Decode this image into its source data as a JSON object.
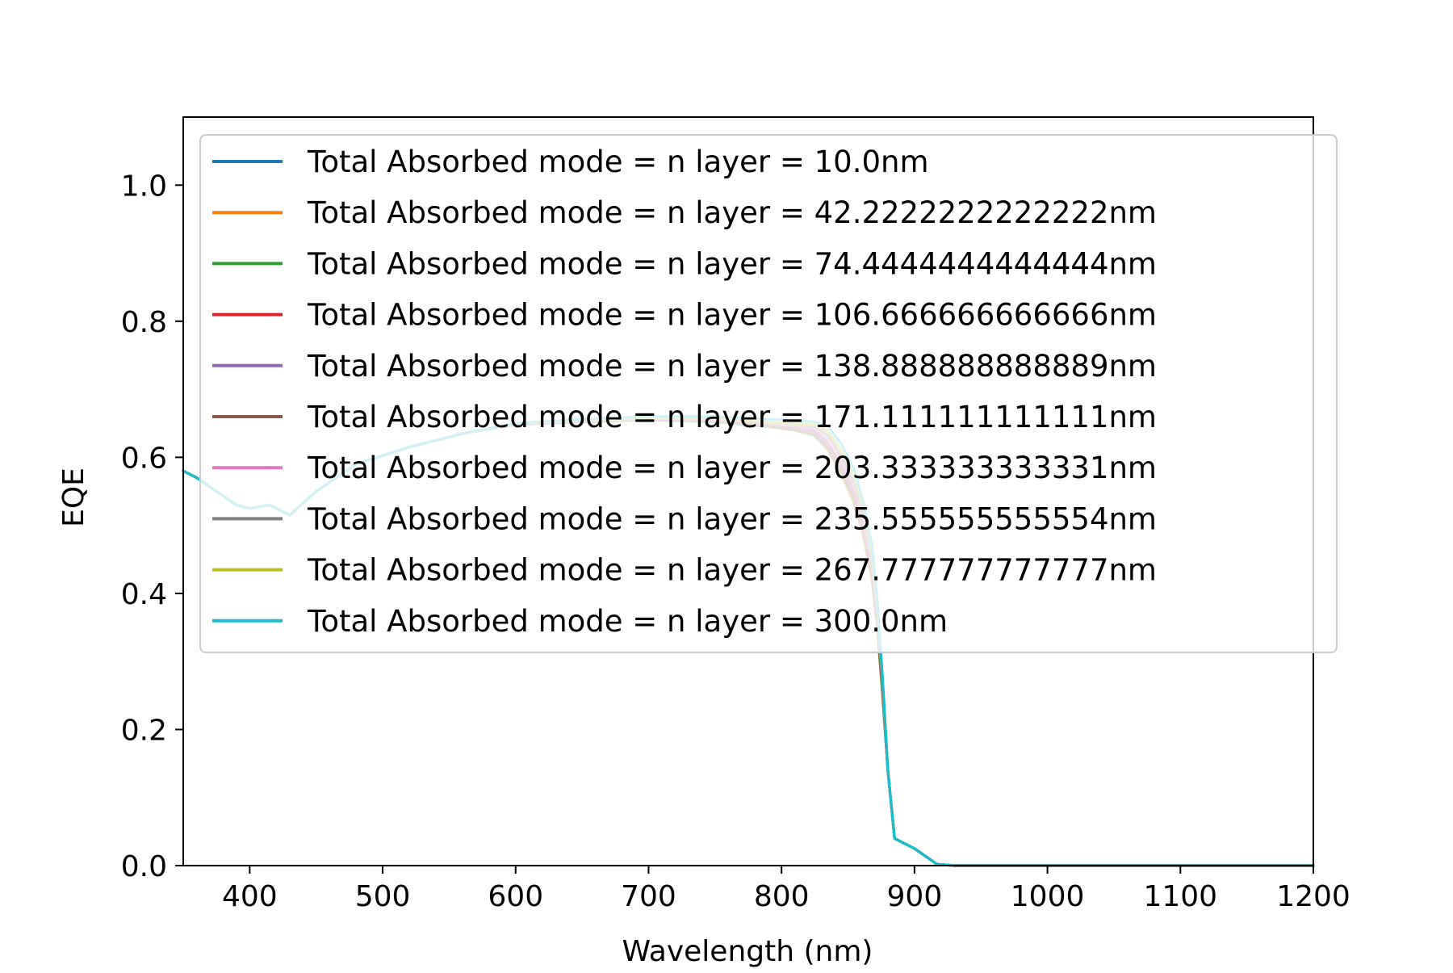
{
  "chart_data": {
    "type": "line",
    "title": "",
    "xlabel": "Wavelength (nm)",
    "ylabel": "EQE",
    "xlim": [
      350,
      1200
    ],
    "ylim": [
      0,
      1.1
    ],
    "xticks": [
      400,
      500,
      600,
      700,
      800,
      900,
      1000,
      1100,
      1200
    ],
    "yticks": [
      0.0,
      0.2,
      0.4,
      0.6,
      0.8,
      1.0
    ],
    "xtick_labels": [
      "400",
      "500",
      "600",
      "700",
      "800",
      "900",
      "1000",
      "1100",
      "1200"
    ],
    "ytick_labels": [
      "0.0",
      "0.2",
      "0.4",
      "0.6",
      "0.8",
      "1.0"
    ],
    "grid": false,
    "legend_position": "top-right",
    "x": [
      350,
      360,
      375,
      390,
      400,
      415,
      430,
      450,
      480,
      520,
      560,
      600,
      650,
      700,
      750,
      790,
      810,
      825,
      835,
      845,
      855,
      862,
      868,
      872,
      876,
      880,
      885,
      900,
      917,
      930,
      1000,
      1100,
      1200
    ],
    "series": [
      {
        "name": "Total Absorbed mode = n layer = 10.0nm",
        "color": "#1f77b4",
        "values": [
          0.58,
          0.57,
          0.55,
          0.53,
          0.525,
          0.53,
          0.515,
          0.55,
          0.59,
          0.615,
          0.635,
          0.648,
          0.652,
          0.655,
          0.652,
          0.645,
          0.64,
          0.632,
          0.61,
          0.575,
          0.53,
          0.48,
          0.42,
          0.35,
          0.25,
          0.14,
          0.04,
          0.025,
          0.002,
          0.0,
          0.0,
          0.0,
          0.0
        ]
      },
      {
        "name": "Total Absorbed mode = n layer = 42.2222222222222nm",
        "color": "#ff7f0e",
        "values": [
          0.58,
          0.57,
          0.55,
          0.53,
          0.525,
          0.53,
          0.515,
          0.55,
          0.59,
          0.615,
          0.635,
          0.648,
          0.652,
          0.655,
          0.652,
          0.645,
          0.64,
          0.632,
          0.61,
          0.575,
          0.53,
          0.48,
          0.42,
          0.35,
          0.25,
          0.14,
          0.04,
          0.025,
          0.002,
          0.0,
          0.0,
          0.0,
          0.0
        ]
      },
      {
        "name": "Total Absorbed mode = n layer = 74.4444444444444nm",
        "color": "#2ca02c",
        "values": [
          0.58,
          0.57,
          0.55,
          0.53,
          0.525,
          0.53,
          0.515,
          0.55,
          0.59,
          0.615,
          0.635,
          0.648,
          0.652,
          0.655,
          0.652,
          0.645,
          0.64,
          0.632,
          0.612,
          0.578,
          0.535,
          0.485,
          0.425,
          0.355,
          0.255,
          0.14,
          0.04,
          0.025,
          0.002,
          0.0,
          0.0,
          0.0,
          0.0
        ]
      },
      {
        "name": "Total Absorbed mode = n layer = 106.666666666666nm",
        "color": "#d62728",
        "values": [
          0.58,
          0.57,
          0.55,
          0.53,
          0.525,
          0.53,
          0.515,
          0.55,
          0.59,
          0.615,
          0.635,
          0.648,
          0.653,
          0.656,
          0.654,
          0.647,
          0.642,
          0.635,
          0.615,
          0.582,
          0.54,
          0.49,
          0.43,
          0.36,
          0.26,
          0.14,
          0.04,
          0.025,
          0.002,
          0.0,
          0.0,
          0.0,
          0.0
        ]
      },
      {
        "name": "Total Absorbed mode = n layer = 138.888888888889nm",
        "color": "#9467bd",
        "values": [
          0.58,
          0.57,
          0.55,
          0.53,
          0.525,
          0.53,
          0.515,
          0.55,
          0.59,
          0.615,
          0.635,
          0.648,
          0.653,
          0.656,
          0.654,
          0.648,
          0.643,
          0.637,
          0.618,
          0.586,
          0.545,
          0.495,
          0.435,
          0.365,
          0.262,
          0.14,
          0.04,
          0.025,
          0.002,
          0.0,
          0.0,
          0.0,
          0.0
        ]
      },
      {
        "name": "Total Absorbed mode = n layer = 171.111111111111nm",
        "color": "#8c564b",
        "values": [
          0.58,
          0.57,
          0.55,
          0.53,
          0.525,
          0.53,
          0.515,
          0.55,
          0.59,
          0.615,
          0.635,
          0.649,
          0.654,
          0.657,
          0.655,
          0.649,
          0.645,
          0.64,
          0.622,
          0.59,
          0.55,
          0.5,
          0.44,
          0.37,
          0.265,
          0.14,
          0.04,
          0.025,
          0.002,
          0.0,
          0.0,
          0.0,
          0.0
        ]
      },
      {
        "name": "Total Absorbed mode = n layer = 203.333333333331nm",
        "color": "#e377c2",
        "values": [
          0.58,
          0.57,
          0.55,
          0.53,
          0.525,
          0.53,
          0.515,
          0.55,
          0.59,
          0.615,
          0.635,
          0.649,
          0.654,
          0.657,
          0.656,
          0.65,
          0.646,
          0.642,
          0.626,
          0.595,
          0.555,
          0.505,
          0.445,
          0.375,
          0.268,
          0.14,
          0.04,
          0.025,
          0.002,
          0.0,
          0.0,
          0.0,
          0.0
        ]
      },
      {
        "name": "Total Absorbed mode = n layer = 235.555555555554nm",
        "color": "#7f7f7f",
        "values": [
          0.58,
          0.57,
          0.55,
          0.53,
          0.525,
          0.53,
          0.515,
          0.55,
          0.59,
          0.615,
          0.635,
          0.649,
          0.655,
          0.658,
          0.657,
          0.651,
          0.648,
          0.645,
          0.632,
          0.602,
          0.562,
          0.512,
          0.452,
          0.38,
          0.27,
          0.14,
          0.04,
          0.025,
          0.002,
          0.0,
          0.0,
          0.0,
          0.0
        ]
      },
      {
        "name": "Total Absorbed mode = n layer = 267.777777777777nm",
        "color": "#bcbd22",
        "values": [
          0.58,
          0.57,
          0.55,
          0.53,
          0.525,
          0.53,
          0.515,
          0.55,
          0.59,
          0.615,
          0.635,
          0.649,
          0.655,
          0.658,
          0.657,
          0.652,
          0.649,
          0.648,
          0.638,
          0.61,
          0.57,
          0.52,
          0.46,
          0.385,
          0.272,
          0.14,
          0.04,
          0.025,
          0.002,
          0.0,
          0.0,
          0.0,
          0.0
        ]
      },
      {
        "name": "Total Absorbed mode = n layer = 300.0nm",
        "color": "#17becf",
        "values": [
          0.58,
          0.57,
          0.55,
          0.53,
          0.525,
          0.53,
          0.515,
          0.55,
          0.59,
          0.615,
          0.635,
          0.65,
          0.656,
          0.66,
          0.66,
          0.656,
          0.654,
          0.652,
          0.645,
          0.62,
          0.58,
          0.53,
          0.47,
          0.39,
          0.275,
          0.14,
          0.04,
          0.025,
          0.002,
          0.0,
          0.0,
          0.0,
          0.0
        ]
      }
    ]
  }
}
